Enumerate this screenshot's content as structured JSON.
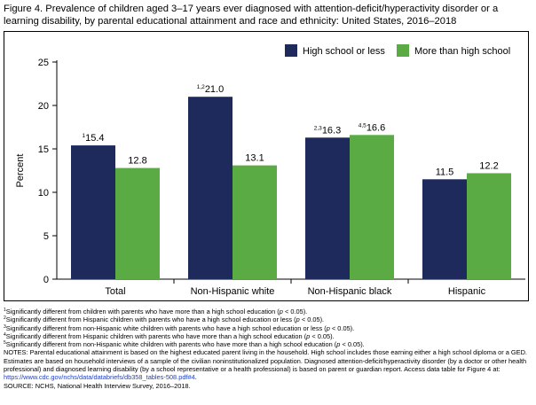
{
  "figure": {
    "title": "Figure 4. Prevalence of children aged 3–17 years ever diagnosed with attention-deficit/hyperactivity disorder or a learning disability, by parental educational attainment and race and ethnicity: United States, 2016–2018"
  },
  "colors": {
    "high_school_or_less": "#1f2a5c",
    "more_than_high_school": "#5aab43"
  },
  "chart_data": {
    "type": "bar",
    "title": "",
    "xlabel": "",
    "ylabel": "Percent",
    "ylim": [
      0,
      25
    ],
    "yticks": [
      0,
      5,
      10,
      15,
      20,
      25
    ],
    "grid": false,
    "legend_position": "top-right",
    "categories": [
      "Total",
      "Non-Hispanic white",
      "Non-Hispanic black",
      "Hispanic"
    ],
    "series": [
      {
        "name": "High school or less",
        "values": [
          15.4,
          21.0,
          16.3,
          11.5
        ],
        "labels": [
          "15.4",
          "21.0",
          "16.3",
          "11.5"
        ],
        "superscripts": [
          "1",
          "1,2",
          "2,3",
          ""
        ]
      },
      {
        "name": "More than high school",
        "values": [
          12.8,
          13.1,
          16.6,
          12.2
        ],
        "labels": [
          "12.8",
          "13.1",
          "16.6",
          "12.2"
        ],
        "superscripts": [
          "",
          "",
          "4,5",
          ""
        ]
      }
    ]
  },
  "footnotes": {
    "fn1": {
      "mark": "1",
      "text": "Significantly different from children with parents who have more than a high school education (",
      "p": "p",
      "tail": " < 0.05)."
    },
    "fn2": {
      "mark": "2",
      "text": "Significantly different from Hispanic children with parents who have a high school education or less (",
      "p": "p",
      "tail": " < 0.05)."
    },
    "fn3": {
      "mark": "3",
      "text": "Significantly different from non-Hispanic white children with parents who have a high school education or less (",
      "p": "p",
      "tail": " < 0.05)."
    },
    "fn4": {
      "mark": "4",
      "text": "Significantly different from Hispanic children with parents who have more than a high school education (",
      "p": "p",
      "tail": " < 0.05)."
    },
    "fn5": {
      "mark": "5",
      "text": "Significantly different from non-Hispanic white children with parents who have more than a high school education (",
      "p": "p",
      "tail": " < 0.05)."
    },
    "notes_text": "NOTES: Parental educational attainment is based on the highest educated parent living in the household. High school includes those earning either a high school diploma or a GED. Estimates are based on household interviews of a sample of the civilian noninstitutionalized population. Diagnosed attention-deficit/hyperactivity disorder (by a doctor or other health professional) and diagnosed learning disability (by a school representative or a health professional) is based on parent or guardian report. Access data table for Figure 4 at: ",
    "link_text": "https://www.cdc.gov/nchs/data/databriefs/db358_tables-508.pdf#4",
    "notes_end": ".",
    "source": "SOURCE: NCHS, National Health Interview Survey, 2016–2018."
  }
}
